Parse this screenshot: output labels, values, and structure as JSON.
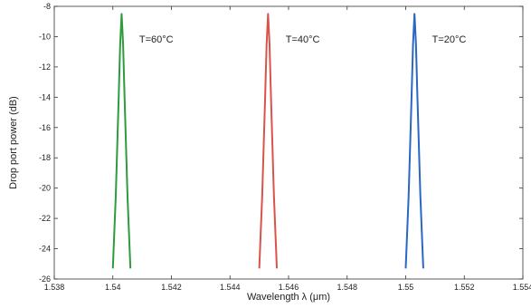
{
  "chart_data": {
    "type": "line",
    "title": "",
    "xlabel": "Wavelength λ (μm)",
    "ylabel": "Drop port power (dB)",
    "xlim": [
      1.538,
      1.554
    ],
    "ylim": [
      -26,
      -8
    ],
    "xticks": [
      1.538,
      1.54,
      1.542,
      1.544,
      1.546,
      1.548,
      1.55,
      1.552,
      1.554
    ],
    "xtick_labels": [
      "1.538",
      "1.54",
      "1.542",
      "1.544",
      "1.546",
      "1.548",
      "1.55",
      "1.552",
      "1.554"
    ],
    "yticks": [
      -8,
      -10,
      -12,
      -14,
      -16,
      -18,
      -20,
      -22,
      -24,
      -26
    ],
    "ytick_labels": [
      "-8",
      "-10",
      "-12",
      "-14",
      "-16",
      "-18",
      "-20",
      "-22",
      "-24",
      "-26"
    ],
    "grid": false,
    "series": [
      {
        "color": "#2e9b3c",
        "x": [
          1.54,
          1.5401,
          1.5402,
          1.54025,
          1.5403,
          1.54035,
          1.5404,
          1.5405,
          1.5406
        ],
        "y": [
          -25.3,
          -20.5,
          -14.0,
          -10.5,
          -8.5,
          -10.5,
          -14.0,
          -20.5,
          -25.3
        ]
      },
      {
        "color": "#d9534a",
        "x": [
          1.545,
          1.5451,
          1.5452,
          1.54525,
          1.5453,
          1.54535,
          1.5454,
          1.5455,
          1.5456
        ],
        "y": [
          -25.3,
          -20.5,
          -14.0,
          -10.5,
          -8.5,
          -10.5,
          -14.0,
          -20.5,
          -25.3
        ]
      },
      {
        "color": "#2a66c4",
        "x": [
          1.55,
          1.5501,
          1.5502,
          1.55025,
          1.5503,
          1.55035,
          1.5504,
          1.5505,
          1.5506
        ],
        "y": [
          -25.3,
          -20.5,
          -14.0,
          -10.5,
          -8.5,
          -10.5,
          -14.0,
          -20.5,
          -25.3
        ]
      }
    ],
    "annotations": [
      {
        "text": "T=60°C",
        "x": 1.5409,
        "y": -10.4
      },
      {
        "text": "T=40°C",
        "x": 1.5459,
        "y": -10.4
      },
      {
        "text": "T=20°C",
        "x": 1.5509,
        "y": -10.4
      }
    ]
  }
}
